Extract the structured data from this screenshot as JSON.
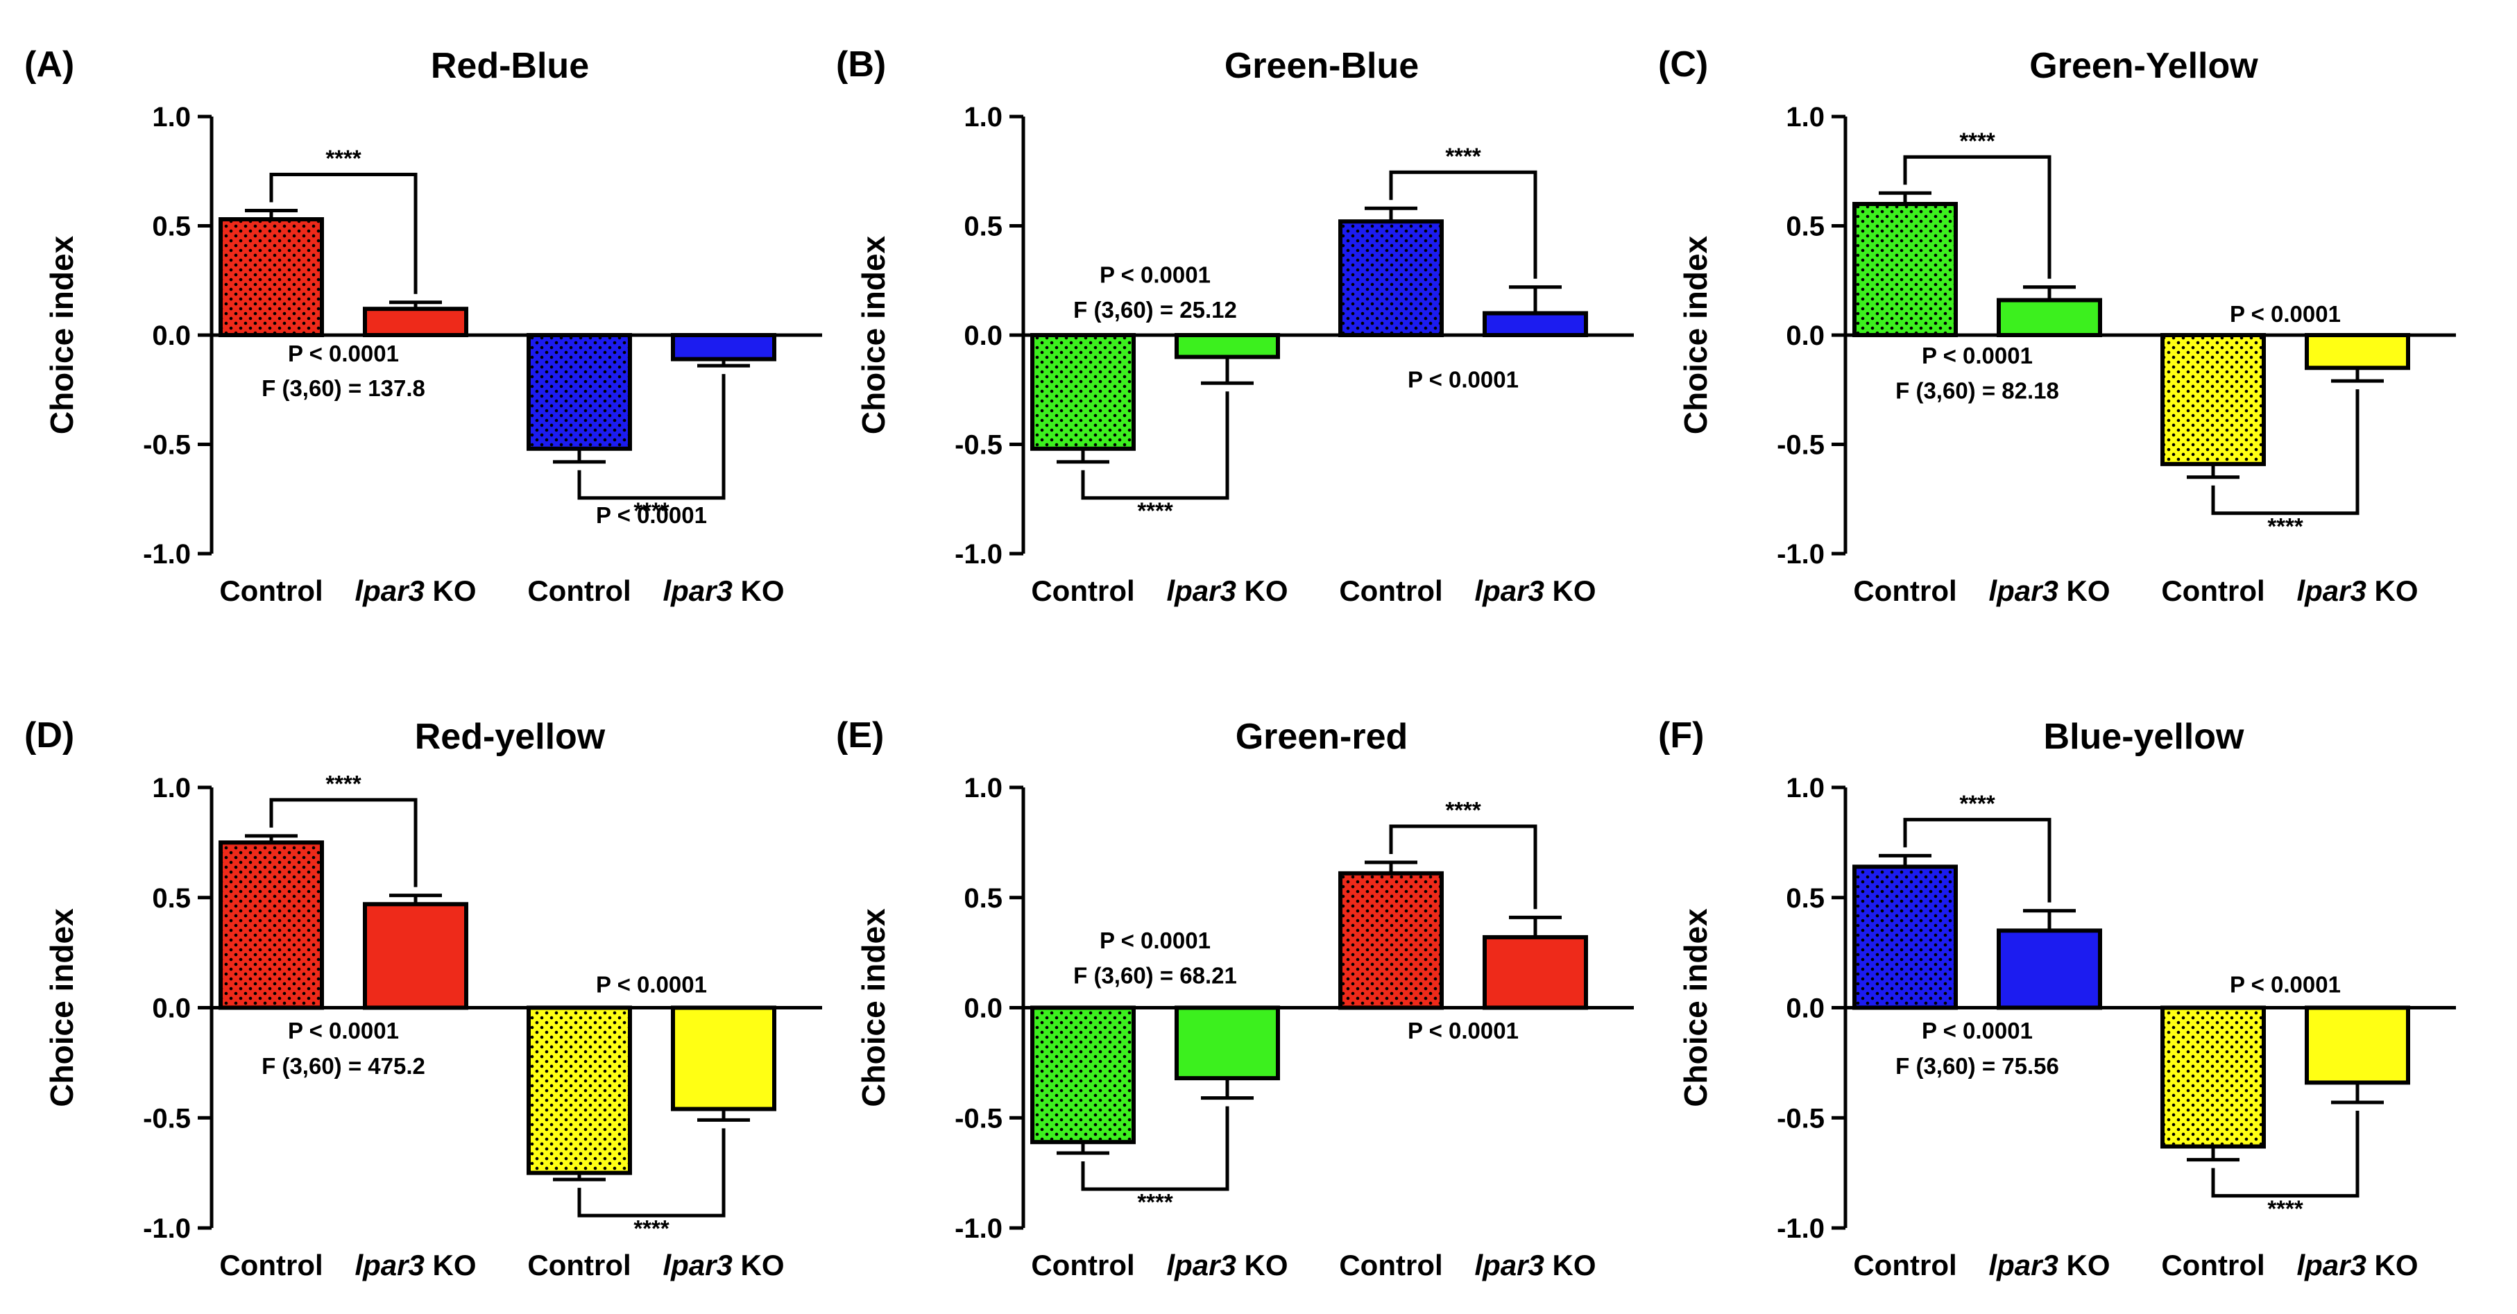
{
  "colors": {
    "red": "#ee2a1a",
    "blue": "#1c1cf0",
    "green": "#3cf01e",
    "yellow": "#ffff14",
    "axis": "#000000"
  },
  "chart_data": [
    {
      "type": "bar",
      "label": "(A)",
      "title": "Red-Blue",
      "ylabel": "Choice index",
      "ylim": [
        -1.0,
        1.0
      ],
      "yticks": [
        "1.0",
        "0.5",
        "0.0",
        "-0.5",
        "-1.0"
      ],
      "categories": [
        {
          "name": "Control",
          "italic": ""
        },
        {
          "name": " KO",
          "italic": "lpar3"
        },
        {
          "name": "Control",
          "italic": ""
        },
        {
          "name": " KO",
          "italic": "lpar3"
        }
      ],
      "values": [
        0.53,
        0.12,
        -0.52,
        -0.11
      ],
      "errors": [
        0.04,
        0.03,
        0.06,
        0.03
      ],
      "bar_colors": [
        "red",
        "red",
        "blue",
        "blue"
      ],
      "dotted": [
        true,
        false,
        true,
        false
      ],
      "sig": [
        {
          "pair": [
            0,
            1
          ],
          "text": "****",
          "dir": "up"
        },
        {
          "pair": [
            2,
            3
          ],
          "text": "****",
          "dir": "down"
        }
      ],
      "annotations": [
        {
          "text": "P < 0.0001",
          "x": 0.5,
          "y": -0.12
        },
        {
          "text": "F (3,60) = 137.8",
          "x": 0.5,
          "y": -0.28
        },
        {
          "text": "P < 0.0001",
          "x": 2.5,
          "y": -0.86
        }
      ]
    },
    {
      "type": "bar",
      "label": "(B)",
      "title": "Green-Blue",
      "ylabel": "Choice index",
      "ylim": [
        -1.0,
        1.0
      ],
      "yticks": [
        "1.0",
        "0.5",
        "0.0",
        "-0.5",
        "-1.0"
      ],
      "categories": [
        {
          "name": "Control",
          "italic": ""
        },
        {
          "name": " KO",
          "italic": "lpar3"
        },
        {
          "name": "Control",
          "italic": ""
        },
        {
          "name": " KO",
          "italic": "lpar3"
        }
      ],
      "values": [
        -0.52,
        -0.1,
        0.52,
        0.1
      ],
      "errors": [
        0.06,
        0.12,
        0.06,
        0.12
      ],
      "bar_colors": [
        "green",
        "green",
        "blue",
        "blue"
      ],
      "dotted": [
        true,
        false,
        true,
        false
      ],
      "sig": [
        {
          "pair": [
            0,
            1
          ],
          "text": "****",
          "dir": "down"
        },
        {
          "pair": [
            2,
            3
          ],
          "text": "****",
          "dir": "up"
        }
      ],
      "annotations": [
        {
          "text": "P < 0.0001",
          "x": 0.5,
          "y": 0.24
        },
        {
          "text": "F (3,60) = 25.12",
          "x": 0.5,
          "y": 0.08
        },
        {
          "text": "P < 0.0001",
          "x": 2.5,
          "y": -0.24
        }
      ]
    },
    {
      "type": "bar",
      "label": "(C)",
      "title": "Green-Yellow",
      "ylabel": "Choice index",
      "ylim": [
        -1.0,
        1.0
      ],
      "yticks": [
        "1.0",
        "0.5",
        "0.0",
        "-0.5",
        "-1.0"
      ],
      "categories": [
        {
          "name": "Control",
          "italic": ""
        },
        {
          "name": " KO",
          "italic": "lpar3"
        },
        {
          "name": "Control",
          "italic": ""
        },
        {
          "name": " KO",
          "italic": "lpar3"
        }
      ],
      "values": [
        0.6,
        0.16,
        -0.59,
        -0.15
      ],
      "errors": [
        0.05,
        0.06,
        0.06,
        0.06
      ],
      "bar_colors": [
        "green",
        "green",
        "yellow",
        "yellow"
      ],
      "dotted": [
        true,
        false,
        true,
        false
      ],
      "sig": [
        {
          "pair": [
            0,
            1
          ],
          "text": "****",
          "dir": "up"
        },
        {
          "pair": [
            2,
            3
          ],
          "text": "****",
          "dir": "down"
        }
      ],
      "annotations": [
        {
          "text": "P < 0.0001",
          "x": 0.5,
          "y": -0.13
        },
        {
          "text": "F (3,60) = 82.18",
          "x": 0.5,
          "y": -0.29
        },
        {
          "text": "P < 0.0001",
          "x": 2.5,
          "y": 0.06
        }
      ]
    },
    {
      "type": "bar",
      "label": "(D)",
      "title": "Red-yellow",
      "ylabel": "Choice index",
      "ylim": [
        -1.0,
        1.0
      ],
      "yticks": [
        "1.0",
        "0.5",
        "0.0",
        "-0.5",
        "-1.0"
      ],
      "categories": [
        {
          "name": "Control",
          "italic": ""
        },
        {
          "name": " KO",
          "italic": "lpar3"
        },
        {
          "name": "Control",
          "italic": ""
        },
        {
          "name": " KO",
          "italic": "lpar3"
        }
      ],
      "values": [
        0.75,
        0.47,
        -0.75,
        -0.46
      ],
      "errors": [
        0.03,
        0.04,
        0.03,
        0.05
      ],
      "bar_colors": [
        "red",
        "red",
        "yellow",
        "yellow"
      ],
      "dotted": [
        true,
        false,
        true,
        false
      ],
      "sig": [
        {
          "pair": [
            0,
            1
          ],
          "text": "****",
          "dir": "up"
        },
        {
          "pair": [
            2,
            3
          ],
          "text": "****",
          "dir": "down"
        }
      ],
      "annotations": [
        {
          "text": "P < 0.0001",
          "x": 0.5,
          "y": -0.14
        },
        {
          "text": "F (3,60) = 475.2",
          "x": 0.5,
          "y": -0.3
        },
        {
          "text": "P < 0.0001",
          "x": 2.5,
          "y": 0.07
        }
      ]
    },
    {
      "type": "bar",
      "label": "(E)",
      "title": "Green-red",
      "ylabel": "Choice index",
      "ylim": [
        -1.0,
        1.0
      ],
      "yticks": [
        "1.0",
        "0.5",
        "0.0",
        "-0.5",
        "-1.0"
      ],
      "categories": [
        {
          "name": "Control",
          "italic": ""
        },
        {
          "name": " KO",
          "italic": "lpar3"
        },
        {
          "name": "Control",
          "italic": ""
        },
        {
          "name": " KO",
          "italic": "lpar3"
        }
      ],
      "values": [
        -0.61,
        -0.32,
        0.61,
        0.32
      ],
      "errors": [
        0.05,
        0.09,
        0.05,
        0.09
      ],
      "bar_colors": [
        "green",
        "green",
        "red",
        "red"
      ],
      "dotted": [
        true,
        false,
        true,
        false
      ],
      "sig": [
        {
          "pair": [
            0,
            1
          ],
          "text": "****",
          "dir": "down"
        },
        {
          "pair": [
            2,
            3
          ],
          "text": "****",
          "dir": "up"
        }
      ],
      "annotations": [
        {
          "text": "P < 0.0001",
          "x": 0.5,
          "y": 0.27
        },
        {
          "text": "F (3,60) = 68.21",
          "x": 0.5,
          "y": 0.11
        },
        {
          "text": "P < 0.0001",
          "x": 2.5,
          "y": -0.14
        }
      ]
    },
    {
      "type": "bar",
      "label": "(F)",
      "title": "Blue-yellow",
      "ylabel": "Choice index",
      "ylim": [
        -1.0,
        1.0
      ],
      "yticks": [
        "1.0",
        "0.5",
        "0.0",
        "-0.5",
        "-1.0"
      ],
      "categories": [
        {
          "name": "Control",
          "italic": ""
        },
        {
          "name": " KO",
          "italic": "lpar3"
        },
        {
          "name": "Control",
          "italic": ""
        },
        {
          "name": " KO",
          "italic": "lpar3"
        }
      ],
      "values": [
        0.64,
        0.35,
        -0.63,
        -0.34
      ],
      "errors": [
        0.05,
        0.09,
        0.06,
        0.09
      ],
      "bar_colors": [
        "blue",
        "blue",
        "yellow",
        "yellow"
      ],
      "dotted": [
        true,
        false,
        true,
        false
      ],
      "sig": [
        {
          "pair": [
            0,
            1
          ],
          "text": "****",
          "dir": "up"
        },
        {
          "pair": [
            2,
            3
          ],
          "text": "****",
          "dir": "down"
        }
      ],
      "annotations": [
        {
          "text": "P < 0.0001",
          "x": 0.5,
          "y": -0.14
        },
        {
          "text": "F (3,60) = 75.56",
          "x": 0.5,
          "y": -0.3
        },
        {
          "text": "P < 0.0001",
          "x": 2.5,
          "y": 0.07
        }
      ]
    }
  ]
}
